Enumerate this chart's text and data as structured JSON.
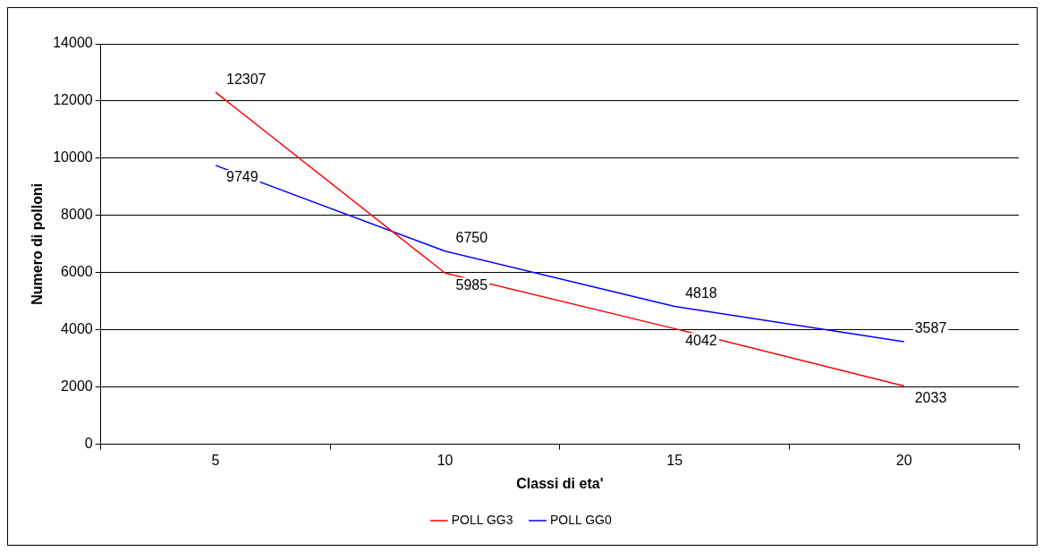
{
  "chart_data": {
    "type": "line",
    "xlabel": "Classi di eta'",
    "ylabel": "Numero di polloni",
    "categories": [
      "5",
      "10",
      "15",
      "20"
    ],
    "series": [
      {
        "name": "POLL GG3",
        "color": "#ff0000",
        "values": [
          12307,
          5985,
          4042,
          2033
        ]
      },
      {
        "name": "POLL GG0",
        "color": "#0000ff",
        "values": [
          9749,
          6750,
          4818,
          3587
        ]
      }
    ],
    "ylim": [
      0,
      14000
    ],
    "yticks": [
      0,
      2000,
      4000,
      6000,
      8000,
      10000,
      12000,
      14000
    ],
    "grid": "y",
    "legend": "bottom",
    "marker": "none",
    "line_style": "solid",
    "data_labels": true
  }
}
